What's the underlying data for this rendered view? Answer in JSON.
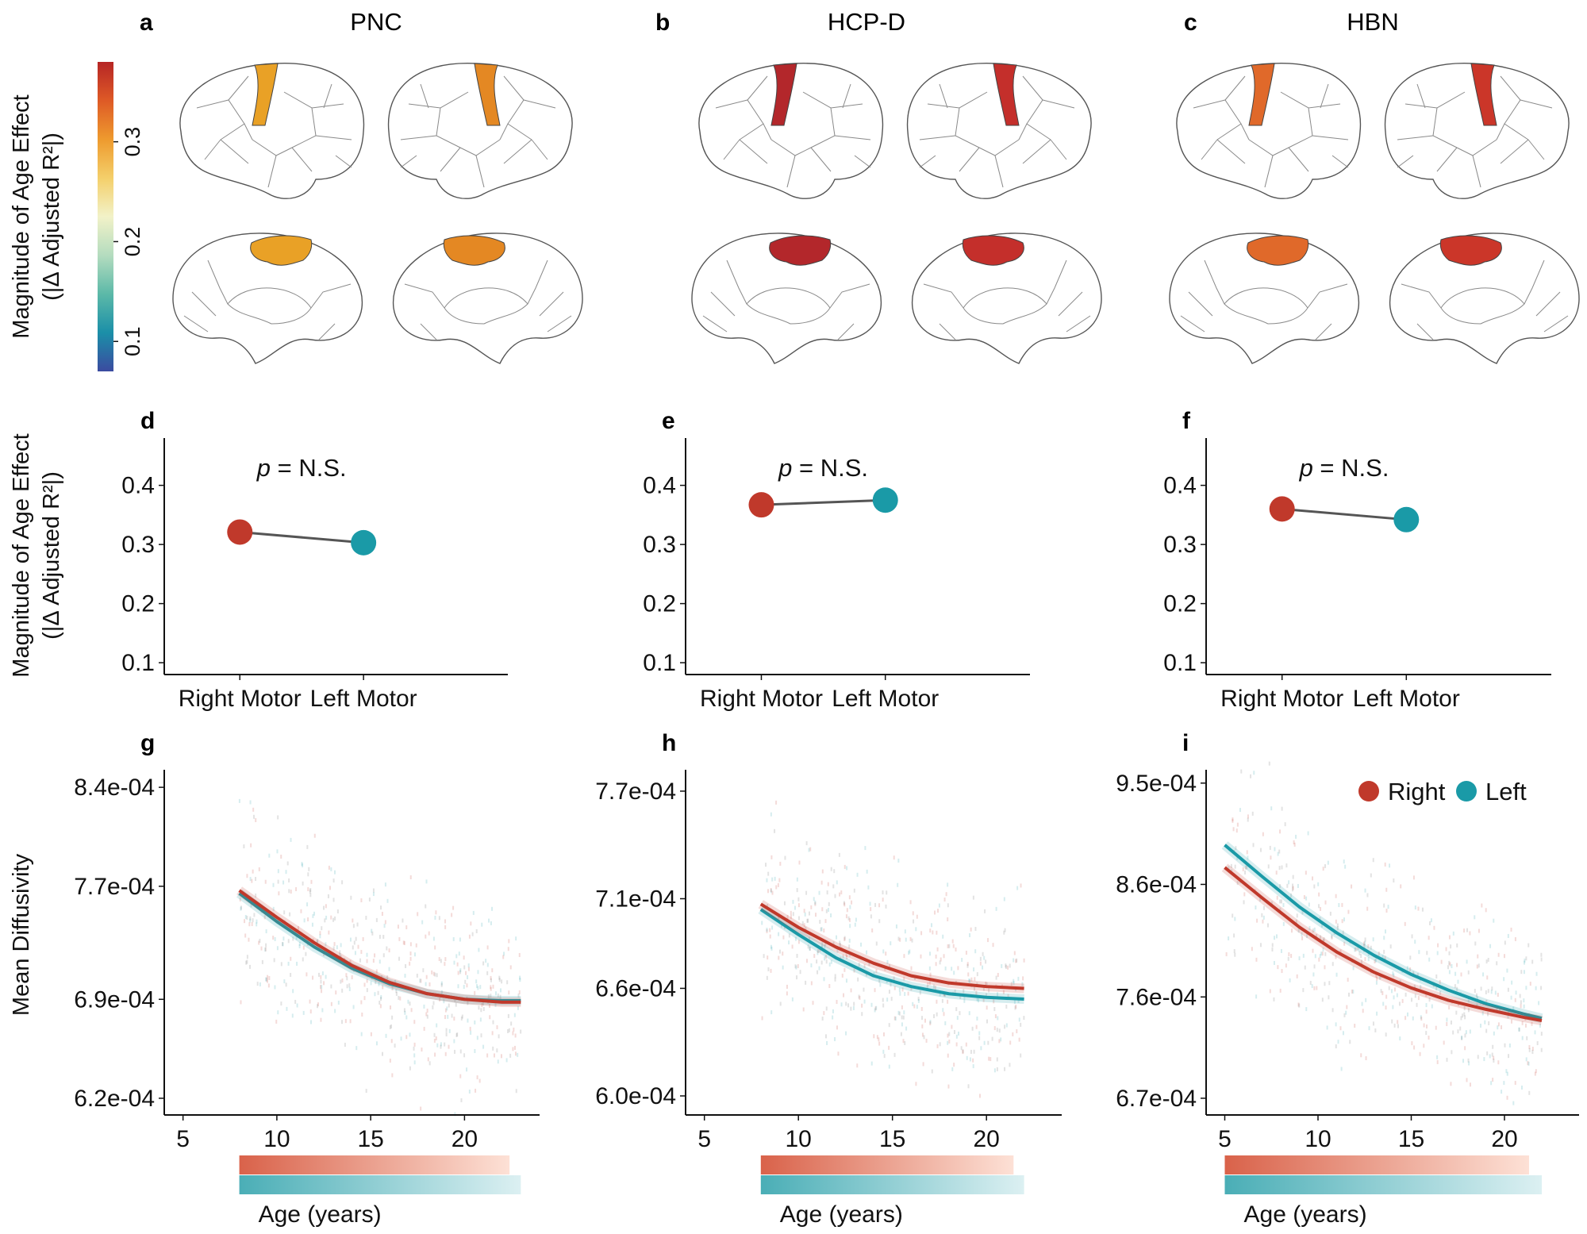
{
  "colors": {
    "right": "#c0392b",
    "left": "#1a9aa7",
    "line": "#555555",
    "brain_outline": "#555555",
    "colorbar": [
      "#3b4ba0",
      "#1b8fa8",
      "#5cb9a8",
      "#b4dcbf",
      "#f2f2c8",
      "#f4cf6a",
      "#ee9a2e",
      "#de5a26",
      "#b62525"
    ]
  },
  "panel_labels": [
    "a",
    "b",
    "c",
    "d",
    "e",
    "f",
    "g",
    "h",
    "i"
  ],
  "datasets": [
    "PNC",
    "HCP-D",
    "HBN"
  ],
  "colorbar": {
    "title_line1": "Magnitude of Age Effect",
    "title_line2": "(|Δ Adjusted R²|)",
    "ticks": [
      "0.1",
      "0.2",
      "0.3"
    ],
    "tick_values": [
      0.1,
      0.2,
      0.3
    ],
    "range": [
      0.07,
      0.38
    ]
  },
  "brain_region_color": [
    "#e9a126",
    "#b3272b",
    "#e0692a"
  ],
  "brain_region_color_right_col": [
    "#e48823",
    "#c42f2b",
    "#cb3629"
  ],
  "dot_ylabel_line1": "Magnitude of Age Effect",
  "dot_ylabel_line2": "(|Δ Adjusted R²|)",
  "annotation_p": "p",
  "annotation_rest": " = N.S.",
  "md_ylabel": "Mean Diffusivity",
  "age_label": "Age (years)",
  "legend": {
    "right": "Right",
    "left": "Left"
  },
  "chart_data": [
    {
      "type": "scatter",
      "panel": "d",
      "title": "",
      "categories": [
        "Right Motor",
        "Left Motor"
      ],
      "values": [
        0.321,
        0.303
      ],
      "ylim": [
        0.08,
        0.48
      ],
      "yticks": [
        "0.1",
        "0.2",
        "0.3",
        "0.4"
      ],
      "annotation": "p = N.S."
    },
    {
      "type": "scatter",
      "panel": "e",
      "title": "",
      "categories": [
        "Right Motor",
        "Left Motor"
      ],
      "values": [
        0.367,
        0.375
      ],
      "ylim": [
        0.08,
        0.48
      ],
      "yticks": [
        "0.1",
        "0.2",
        "0.3",
        "0.4"
      ],
      "annotation": "p = N.S."
    },
    {
      "type": "scatter",
      "panel": "f",
      "title": "",
      "categories": [
        "Right Motor",
        "Left Motor"
      ],
      "values": [
        0.36,
        0.342
      ],
      "ylim": [
        0.08,
        0.48
      ],
      "yticks": [
        "0.1",
        "0.2",
        "0.3",
        "0.4"
      ],
      "annotation": "p = N.S."
    },
    {
      "type": "line",
      "panel": "g",
      "xlabel": "Age (years)",
      "ylabel": "Mean Diffusivity",
      "xlim": [
        4,
        24
      ],
      "xticks": [
        5,
        10,
        15,
        20
      ],
      "ylim": [
        0.0006138,
        0.0008468
      ],
      "yticks": [
        "6.2e-04",
        "6.9e-04",
        "7.7e-04",
        "8.4e-04"
      ],
      "ytick_values": [
        0.00062,
        0.00069,
        0.00077,
        0.00084
      ],
      "age_range": [
        8,
        23
      ],
      "series": [
        {
          "name": "Right",
          "x": [
            8,
            10,
            12,
            14,
            16,
            18,
            20,
            22,
            23
          ],
          "y": [
            0.000767,
            0.000748,
            0.00073,
            0.000714,
            0.000702,
            0.000694,
            0.00069,
            0.000688,
            0.000688
          ]
        },
        {
          "name": "Left",
          "x": [
            8,
            10,
            12,
            14,
            16,
            18,
            20,
            22,
            23
          ],
          "y": [
            0.000765,
            0.000745,
            0.000727,
            0.000712,
            0.000701,
            0.000694,
            0.00069,
            0.000689,
            0.000689
          ]
        }
      ]
    },
    {
      "type": "line",
      "panel": "h",
      "xlabel": "Age (years)",
      "ylabel": "",
      "xlim": [
        4,
        24
      ],
      "xticks": [
        5,
        10,
        15,
        20
      ],
      "ylim": [
        0.0005938,
        0.0007775
      ],
      "yticks": [
        "6.0e-04",
        "6.6e-04",
        "7.1e-04",
        "7.7e-04"
      ],
      "ytick_values": [
        0.0006,
        0.00066,
        0.00071,
        0.00077
      ],
      "age_range": [
        8,
        22
      ],
      "series": [
        {
          "name": "Right",
          "x": [
            8,
            10,
            12,
            14,
            16,
            18,
            20,
            22
          ],
          "y": [
            0.000707,
            0.000694,
            0.000683,
            0.000674,
            0.000667,
            0.000663,
            0.000661,
            0.00066
          ]
        },
        {
          "name": "Left",
          "x": [
            8,
            10,
            12,
            14,
            16,
            18,
            20,
            22
          ],
          "y": [
            0.000704,
            0.00069,
            0.000677,
            0.000667,
            0.000661,
            0.000657,
            0.000655,
            0.000654
          ]
        }
      ]
    },
    {
      "type": "line",
      "panel": "i",
      "xlabel": "Age (years)",
      "ylabel": "",
      "xlim": [
        4,
        24
      ],
      "xticks": [
        5,
        10,
        15,
        20
      ],
      "ylim": [
        0.0006622,
        0.0009548
      ],
      "yticks": [
        "6.7e-04",
        "7.6e-04",
        "8.6e-04",
        "9.5e-04"
      ],
      "ytick_values": [
        0.00067,
        0.00076,
        0.00086,
        0.00095
      ],
      "age_range": [
        5,
        22
      ],
      "series": [
        {
          "name": "Right",
          "x": [
            5,
            7,
            9,
            11,
            13,
            15,
            17,
            19,
            21,
            22
          ],
          "y": [
            0.000875,
            0.000848,
            0.000822,
            0.0008,
            0.000782,
            0.000768,
            0.000757,
            0.000749,
            0.000742,
            0.000739
          ]
        },
        {
          "name": "Left",
          "x": [
            5,
            7,
            9,
            11,
            13,
            15,
            17,
            19,
            21,
            22
          ],
          "y": [
            0.000895,
            0.000867,
            0.00084,
            0.000817,
            0.000797,
            0.00078,
            0.000766,
            0.000754,
            0.000745,
            0.000741
          ]
        }
      ]
    }
  ]
}
